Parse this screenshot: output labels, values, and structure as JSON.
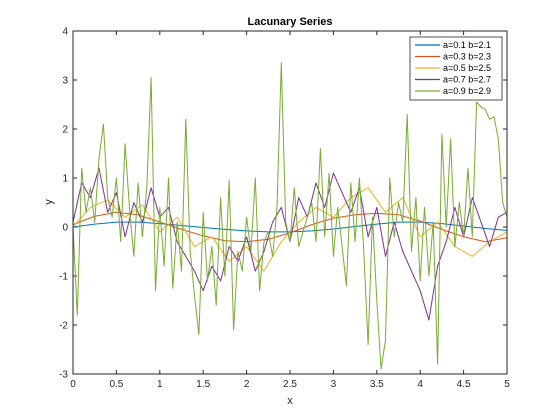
{
  "chart_data": {
    "type": "line",
    "title": "Lacunary Series",
    "xlabel": "x",
    "ylabel": "y",
    "xlim": [
      0,
      5
    ],
    "ylim": [
      -3,
      4
    ],
    "xticks": [
      0,
      0.5,
      1,
      1.5,
      2,
      2.5,
      3,
      3.5,
      4,
      4.5,
      5
    ],
    "xtick_labels": [
      "0",
      "0.5",
      "1",
      "1.5",
      "2",
      "2.5",
      "3",
      "3.5",
      "4",
      "4.5",
      "5"
    ],
    "yticks": [
      -3,
      -2,
      -1,
      0,
      1,
      2,
      3,
      4
    ],
    "ytick_labels": [
      "-3",
      "-2",
      "-1",
      "0",
      "1",
      "2",
      "3",
      "4"
    ],
    "grid": false,
    "legend_position": "top-right",
    "series": [
      {
        "name": "a=0.1 b=2.1",
        "color": "#0072BD",
        "x": [
          0,
          0.25,
          0.5,
          0.75,
          1.0,
          1.25,
          1.5,
          1.75,
          2.0,
          2.25,
          2.5,
          2.75,
          3.0,
          3.25,
          3.5,
          3.75,
          4.0,
          4.25,
          4.5,
          4.75,
          5.0
        ],
        "y": [
          0.0,
          0.06,
          0.1,
          0.1,
          0.07,
          0.03,
          -0.01,
          -0.05,
          -0.08,
          -0.1,
          -0.1,
          -0.08,
          -0.04,
          0.01,
          0.06,
          0.1,
          0.1,
          0.07,
          0.02,
          -0.03,
          -0.07
        ]
      },
      {
        "name": "a=0.3 b=2.3",
        "color": "#D95319",
        "x": [
          0,
          0.25,
          0.5,
          0.75,
          1.0,
          1.25,
          1.5,
          1.75,
          2.0,
          2.25,
          2.5,
          2.75,
          3.0,
          3.25,
          3.5,
          3.75,
          4.0,
          4.25,
          4.5,
          4.75,
          5.0
        ],
        "y": [
          0.05,
          0.22,
          0.3,
          0.25,
          0.1,
          -0.05,
          -0.18,
          -0.28,
          -0.3,
          -0.25,
          -0.12,
          0.05,
          0.18,
          0.25,
          0.28,
          0.25,
          0.12,
          -0.05,
          -0.2,
          -0.3,
          -0.22
        ]
      },
      {
        "name": "a=0.5 b=2.5",
        "color": "#EDB120",
        "x": [
          0,
          0.2,
          0.4,
          0.6,
          0.8,
          1.0,
          1.2,
          1.4,
          1.6,
          1.8,
          2.0,
          2.2,
          2.4,
          2.6,
          2.8,
          3.0,
          3.2,
          3.4,
          3.6,
          3.8,
          4.0,
          4.2,
          4.4,
          4.6,
          4.8,
          5.0
        ],
        "y": [
          0.0,
          0.4,
          0.55,
          0.2,
          0.45,
          -0.1,
          0.2,
          -0.4,
          -0.2,
          -0.7,
          -0.4,
          -0.9,
          -0.3,
          0.1,
          0.4,
          0.2,
          0.6,
          0.8,
          0.3,
          0.6,
          -0.2,
          0.1,
          -0.4,
          -0.6,
          -0.3,
          -0.1
        ]
      },
      {
        "name": "a=0.7 b=2.7",
        "color": "#7E2F8E",
        "x": [
          0,
          0.1,
          0.2,
          0.3,
          0.4,
          0.5,
          0.6,
          0.7,
          0.8,
          0.9,
          1.0,
          1.1,
          1.2,
          1.3,
          1.4,
          1.5,
          1.6,
          1.7,
          1.8,
          1.9,
          2.0,
          2.1,
          2.2,
          2.3,
          2.4,
          2.5,
          2.6,
          2.7,
          2.8,
          2.9,
          3.0,
          3.1,
          3.2,
          3.3,
          3.4,
          3.5,
          3.6,
          3.7,
          3.8,
          3.9,
          4.0,
          4.1,
          4.2,
          4.3,
          4.4,
          4.5,
          4.6,
          4.7,
          4.8,
          4.9,
          5.0
        ],
        "y": [
          0.1,
          0.9,
          0.6,
          1.2,
          0.3,
          0.7,
          -0.2,
          0.5,
          0.1,
          0.8,
          0.2,
          0.4,
          -0.3,
          -0.6,
          -0.9,
          -1.3,
          -0.8,
          -1.1,
          -0.4,
          -0.7,
          -0.2,
          -0.9,
          -0.5,
          0.1,
          0.4,
          -0.3,
          0.6,
          0.2,
          0.9,
          0.4,
          1.1,
          0.7,
          0.3,
          0.8,
          -0.2,
          0.4,
          -0.6,
          0.1,
          -0.5,
          -0.9,
          -1.3,
          -1.9,
          -0.8,
          -0.3,
          0.4,
          -0.2,
          0.6,
          0.1,
          -0.4,
          0.2,
          0.3
        ]
      },
      {
        "name": "a=0.9 b=2.9",
        "color": "#77AC30",
        "x": [
          0,
          0.05,
          0.1,
          0.15,
          0.2,
          0.25,
          0.3,
          0.35,
          0.4,
          0.45,
          0.5,
          0.55,
          0.6,
          0.65,
          0.7,
          0.75,
          0.8,
          0.85,
          0.9,
          0.95,
          1.0,
          1.05,
          1.1,
          1.15,
          1.2,
          1.25,
          1.3,
          1.35,
          1.4,
          1.45,
          1.5,
          1.55,
          1.6,
          1.65,
          1.7,
          1.75,
          1.8,
          1.85,
          1.9,
          1.95,
          2.0,
          2.05,
          2.1,
          2.15,
          2.2,
          2.25,
          2.3,
          2.35,
          2.4,
          2.45,
          2.5,
          2.55,
          2.6,
          2.65,
          2.7,
          2.75,
          2.8,
          2.85,
          2.9,
          2.95,
          3.0,
          3.05,
          3.1,
          3.15,
          3.2,
          3.25,
          3.3,
          3.35,
          3.4,
          3.45,
          3.5,
          3.55,
          3.6,
          3.65,
          3.7,
          3.75,
          3.8,
          3.85,
          3.9,
          3.95,
          4.0,
          4.05,
          4.1,
          4.15,
          4.2,
          4.25,
          4.3,
          4.35,
          4.4,
          4.45,
          4.5,
          4.55,
          4.6,
          4.65,
          4.7,
          4.75,
          4.8,
          4.85,
          4.9,
          4.95,
          5.0
        ],
        "y": [
          0.0,
          -1.8,
          1.2,
          0.3,
          0.8,
          0.1,
          1.4,
          2.1,
          0.6,
          0.2,
          1.0,
          -0.3,
          1.7,
          0.4,
          -0.6,
          0.9,
          -0.2,
          0.8,
          3.05,
          -1.3,
          0.4,
          -0.8,
          1.0,
          -1.25,
          0.1,
          -0.9,
          2.2,
          -0.5,
          -1.4,
          -2.2,
          0.3,
          -1.1,
          -0.4,
          -1.6,
          0.6,
          -1.0,
          0.95,
          -2.1,
          -0.5,
          -0.9,
          0.2,
          -0.5,
          1.0,
          -1.3,
          -0.3,
          -0.1,
          -0.6,
          0.4,
          3.35,
          0.1,
          -0.3,
          0.8,
          -0.4,
          -0.1,
          0.2,
          0.5,
          -0.3,
          1.6,
          -0.2,
          1.1,
          -0.6,
          0.4,
          -0.4,
          -1.2,
          0.9,
          -0.3,
          1.0,
          -0.5,
          -2.4,
          0.2,
          -1.5,
          -2.9,
          -2.3,
          1.0,
          -0.2,
          0.5,
          0.1,
          2.3,
          -0.5,
          0.6,
          -1.1,
          0.4,
          -1.0,
          0.1,
          -2.8,
          1.9,
          0.0,
          1.8,
          -0.4,
          0.5,
          -0.2,
          1.2,
          -0.2,
          2.55,
          2.45,
          2.4,
          2.2,
          2.25,
          1.8,
          0.5,
          0.2
        ]
      }
    ]
  }
}
